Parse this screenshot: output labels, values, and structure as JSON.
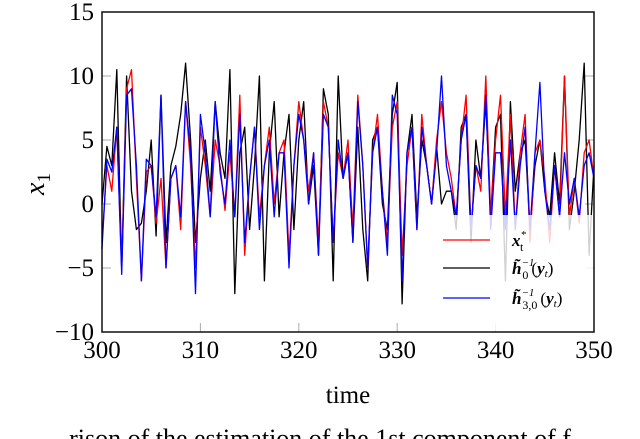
{
  "chart_data": {
    "type": "line",
    "title": "",
    "xlabel": "time",
    "ylabel": "x1",
    "xlim": [
      300,
      350
    ],
    "ylim": [
      -10,
      15
    ],
    "xticks": [
      "300",
      "310",
      "320",
      "330",
      "340",
      "350"
    ],
    "yticks": [
      "15",
      "10",
      "5",
      "0",
      "−5",
      "−10"
    ],
    "xtick_values": [
      300,
      310,
      320,
      330,
      340,
      350
    ],
    "ytick_values": [
      15,
      10,
      5,
      0,
      -5,
      -10
    ],
    "legend_position": "bottom-right",
    "x_start": 300,
    "x_step": 0.5,
    "series": [
      {
        "name": "x_t^*",
        "label_main": "x",
        "label_sup": "*",
        "label_sub": "t",
        "color": "#ff0000",
        "values": [
          -3,
          3,
          1,
          6,
          -5,
          9,
          10.5,
          2,
          -6,
          2.5,
          3,
          -1.5,
          2,
          -5,
          2,
          3,
          -2,
          8,
          3,
          -5,
          6,
          3,
          -1,
          5,
          3,
          -0.5,
          4,
          -1,
          8.5,
          -4,
          2,
          6,
          -1,
          3,
          6,
          0,
          4,
          5,
          -4,
          3,
          8,
          5,
          1,
          4,
          -3,
          8,
          6,
          -3,
          4,
          2,
          5,
          -2,
          8.5,
          3,
          -5,
          4,
          7,
          1,
          -3,
          6,
          8,
          -4,
          3,
          6,
          -2,
          7,
          3,
          0,
          5,
          8,
          4,
          2,
          -1,
          5,
          8.5,
          -2,
          3,
          1,
          10,
          -1,
          5,
          8.5,
          -1,
          7,
          -2,
          4,
          7,
          -3,
          4,
          5,
          2,
          -3,
          3,
          -1,
          10,
          -1,
          2,
          -1.5,
          4,
          5,
          2
        ]
      },
      {
        "name": "h0^{-1}(y_t)",
        "label_main": "h̃",
        "label_sup": "−1",
        "label_sub": "0",
        "label_arg": "(y",
        "color": "#000000",
        "values": [
          0,
          4.5,
          3,
          10.5,
          -5,
          10,
          1,
          -2,
          -1.5,
          1,
          5,
          -2.5,
          8.5,
          -3,
          3,
          4.5,
          7,
          11,
          5,
          -3,
          2,
          5,
          1,
          8,
          4,
          2,
          10.5,
          -7,
          4,
          6,
          -2,
          3,
          10,
          -6,
          4,
          8,
          -1,
          4,
          7,
          -2,
          5,
          8,
          0,
          3,
          -4,
          9,
          7,
          -6,
          10,
          2,
          4,
          -3,
          6,
          -2,
          -6,
          5,
          6,
          0,
          -2,
          7,
          9.5,
          -7.8,
          4,
          7,
          -1,
          5,
          3,
          0,
          4.5,
          0,
          1,
          1,
          -2,
          6,
          7,
          -3,
          5,
          2,
          8,
          -1,
          6,
          7,
          -6,
          8,
          1,
          4,
          5,
          -2,
          3,
          5,
          1,
          -1,
          4,
          0,
          10,
          -2,
          1,
          5,
          11,
          -4,
          3
        ]
      },
      {
        "name": "h30^{-1}(y_t)",
        "label_main": "h̃",
        "label_sup": "−1",
        "label_sub": "3,0",
        "label_arg": "(y",
        "color": "#0000ff",
        "values": [
          -3.5,
          3.5,
          2.5,
          6,
          -5.5,
          8.5,
          9,
          3,
          -6,
          3.5,
          3,
          -1,
          8.5,
          -5,
          2,
          3,
          -1,
          8,
          4,
          -7,
          7,
          4,
          -1,
          8,
          2.5,
          0,
          5,
          -1,
          7,
          -3,
          2,
          6,
          -2,
          3,
          5,
          -1,
          4,
          4,
          -5,
          3,
          7,
          5,
          0,
          4,
          -4,
          7,
          6,
          -3,
          5,
          2,
          4,
          -3,
          8,
          3,
          -5,
          4,
          6,
          1,
          -4,
          8.5,
          7,
          -6,
          4,
          6,
          -2,
          6,
          3,
          0,
          4,
          10,
          3,
          1,
          -1,
          5,
          7,
          -2,
          3,
          2,
          8.5,
          -2,
          4,
          4,
          -2,
          5,
          -2,
          3,
          6,
          -2,
          4,
          9.5,
          1,
          -2,
          3,
          -1,
          4,
          0,
          2,
          -1,
          3,
          4,
          2
        ]
      }
    ]
  },
  "caption_fragment": "rison of the estimation of the 1st component of f"
}
